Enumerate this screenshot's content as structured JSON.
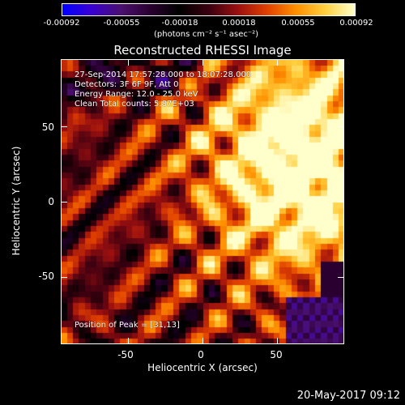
{
  "colorbar": {
    "ticks": [
      "-0.00092",
      "-0.00055",
      "-0.00018",
      "0.00018",
      "0.00055",
      "0.00092"
    ],
    "units": "(photons cm⁻² s⁻¹ asec⁻²)"
  },
  "title": "Reconstructed RHESSI Image",
  "info": {
    "time": "27-Sep-2014 17:57:28.000 to 18:07:28.000",
    "detectors": "Detectors: 3F 6F 9F, Att 0",
    "energy": "Energy Range: 12.0 - 25.0 keV",
    "clean": "Clean     Total counts: 5.87E+03",
    "peak": "Position of Peak = [31,13]"
  },
  "axes": {
    "xlabel": "Heliocentric X (arcsec)",
    "ylabel": "Heliocentric Y (arcsec)",
    "xticks": [
      "-50",
      "0",
      "50"
    ],
    "yticks": [
      "50",
      "0",
      "-50"
    ],
    "xtick_values": [
      -50,
      0,
      50
    ],
    "ytick_values": [
      50,
      0,
      -50
    ],
    "xrange": [
      -95,
      95
    ],
    "yrange": [
      -95,
      95
    ]
  },
  "timestamp": "20-May-2017 09:12",
  "colors": {
    "colormap": [
      "#0000ff",
      "#3a00d0",
      "#4a1070",
      "#2a0030",
      "#000000",
      "#3a0010",
      "#9a1010",
      "#e04000",
      "#ff9000",
      "#ffd040",
      "#ffffcc"
    ]
  }
}
